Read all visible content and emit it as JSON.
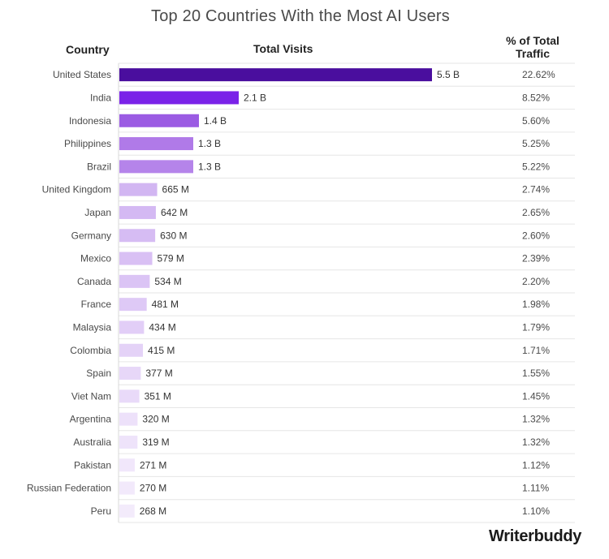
{
  "chart_data": {
    "type": "bar",
    "orientation": "horizontal",
    "title": "Top 20 Countries With the Most AI Users",
    "headers": {
      "country": "Country",
      "visits": "Total Visits",
      "pct": "% of Total Traffic"
    },
    "categories": [
      "United States",
      "India",
      "Indonesia",
      "Philippines",
      "Brazil",
      "United Kingdom",
      "Japan",
      "Germany",
      "Mexico",
      "Canada",
      "France",
      "Malaysia",
      "Colombia",
      "Spain",
      "Viet Nam",
      "Argentina",
      "Australia",
      "Pakistan",
      "Russian Federation",
      "Peru"
    ],
    "values": [
      5.5,
      2.1,
      1.4,
      1.3,
      1.3,
      0.665,
      0.642,
      0.63,
      0.579,
      0.534,
      0.481,
      0.434,
      0.415,
      0.377,
      0.351,
      0.32,
      0.319,
      0.271,
      0.27,
      0.268
    ],
    "value_unit": "billion visits",
    "value_labels": [
      "5.5 B",
      "2.1 B",
      "1.4 B",
      "1.3 B",
      "1.3 B",
      "665 M",
      "642 M",
      "630 M",
      "579 M",
      "534 M",
      "481 M",
      "434 M",
      "415 M",
      "377 M",
      "351 M",
      "320 M",
      "319 M",
      "271 M",
      "270 M",
      "268 M"
    ],
    "pct_labels": [
      "22.62%",
      "8.52%",
      "5.60%",
      "5.25%",
      "5.22%",
      "2.74%",
      "2.65%",
      "2.60%",
      "2.39%",
      "2.20%",
      "1.98%",
      "1.79%",
      "1.71%",
      "1.55%",
      "1.45%",
      "1.32%",
      "1.32%",
      "1.12%",
      "1.11%",
      "1.10%"
    ],
    "colors": [
      "#4a0e9e",
      "#7a22e8",
      "#9b5be3",
      "#b07ae8",
      "#b584ea",
      "#d2b6f2",
      "#d4b9f3",
      "#d6bcf3",
      "#d9c0f4",
      "#dbc4f5",
      "#dec9f6",
      "#e2cef7",
      "#e4d2f7",
      "#e7d7f8",
      "#e9daf9",
      "#ede1fa",
      "#eee3fa",
      "#f1e7fb",
      "#f2e9fb",
      "#f3ebfb"
    ],
    "grid": "horizontal row separators"
  },
  "brand": {
    "logo_text": "Writerbuddy"
  }
}
